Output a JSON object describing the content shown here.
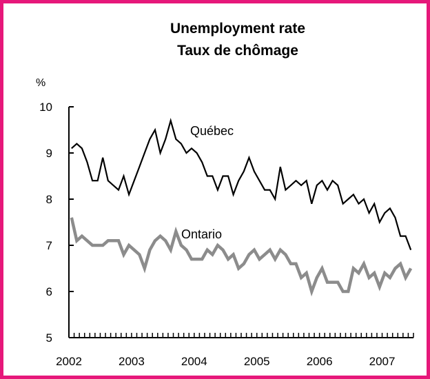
{
  "chart_data": {
    "type": "line",
    "title": "Unemployment rate",
    "subtitle": "Taux de chômage",
    "ylabel": "%",
    "ylim": [
      5,
      10
    ],
    "y_ticks": [
      5,
      6,
      7,
      8,
      9,
      10
    ],
    "x_start": "2002-01",
    "x_end": "2007-07",
    "x_tick_labels": [
      "2002",
      "2003",
      "2004",
      "2005",
      "2006",
      "2007"
    ],
    "grid": false,
    "series": [
      {
        "name": "Québec",
        "color": "#000000",
        "values": [
          9.1,
          9.2,
          9.1,
          8.8,
          8.4,
          8.4,
          8.9,
          8.4,
          8.3,
          8.2,
          8.5,
          8.1,
          8.4,
          8.7,
          9.0,
          9.3,
          9.5,
          9.0,
          9.3,
          9.7,
          9.3,
          9.2,
          9.0,
          9.1,
          9.0,
          8.8,
          8.5,
          8.5,
          8.2,
          8.5,
          8.5,
          8.1,
          8.4,
          8.6,
          8.9,
          8.6,
          8.4,
          8.2,
          8.2,
          8.0,
          8.7,
          8.2,
          8.3,
          8.4,
          8.3,
          8.4,
          7.9,
          8.3,
          8.4,
          8.2,
          8.4,
          8.3,
          7.9,
          8.0,
          8.1,
          7.9,
          8.0,
          7.7,
          7.9,
          7.5,
          7.7,
          7.8,
          7.6,
          7.2,
          7.2,
          6.9
        ]
      },
      {
        "name": "Ontario",
        "color": "#8c8c8c",
        "values": [
          7.6,
          7.1,
          7.2,
          7.1,
          7.0,
          7.0,
          7.0,
          7.1,
          7.1,
          7.1,
          6.8,
          7.0,
          6.9,
          6.8,
          6.5,
          6.9,
          7.1,
          7.2,
          7.1,
          6.9,
          7.3,
          7.0,
          6.9,
          6.7,
          6.7,
          6.7,
          6.9,
          6.8,
          7.0,
          6.9,
          6.7,
          6.8,
          6.5,
          6.6,
          6.8,
          6.9,
          6.7,
          6.8,
          6.9,
          6.7,
          6.9,
          6.8,
          6.6,
          6.6,
          6.3,
          6.4,
          6.0,
          6.3,
          6.5,
          6.2,
          6.2,
          6.2,
          6.0,
          6.0,
          6.5,
          6.4,
          6.6,
          6.3,
          6.4,
          6.1,
          6.4,
          6.3,
          6.5,
          6.6,
          6.3,
          6.5
        ]
      }
    ]
  }
}
